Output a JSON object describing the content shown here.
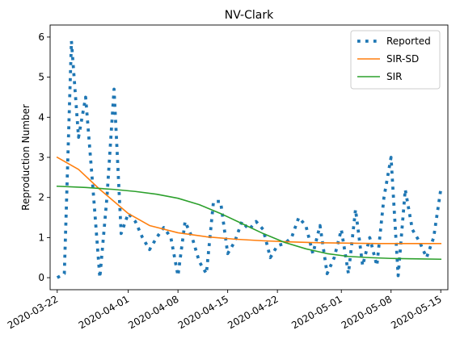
{
  "chart_data": {
    "type": "line",
    "title": "NV-Clark",
    "xlabel": "",
    "ylabel": "Reproduction Number",
    "x_type": "date",
    "xlim": [
      "2020-03-21",
      "2020-05-16"
    ],
    "ylim": [
      -0.3,
      6.3
    ],
    "x_ticks": [
      "2020-03-22",
      "2020-04-01",
      "2020-04-08",
      "2020-04-15",
      "2020-04-22",
      "2020-05-01",
      "2020-05-08",
      "2020-05-15"
    ],
    "y_ticks": [
      0,
      1,
      2,
      3,
      4,
      5,
      6
    ],
    "grid": false,
    "legend": {
      "position": "upper-right",
      "entries": [
        "Reported",
        "SIR-SD",
        "SIR"
      ]
    },
    "series": [
      {
        "name": "Reported",
        "style": "dotted",
        "color": "#1f77b4",
        "x": [
          "2020-03-22",
          "2020-03-23",
          "2020-03-24",
          "2020-03-25",
          "2020-03-26",
          "2020-03-27",
          "2020-03-28",
          "2020-03-29",
          "2020-03-30",
          "2020-03-31",
          "2020-04-01",
          "2020-04-02",
          "2020-04-03",
          "2020-04-04",
          "2020-04-05",
          "2020-04-06",
          "2020-04-07",
          "2020-04-08",
          "2020-04-09",
          "2020-04-10",
          "2020-04-11",
          "2020-04-12",
          "2020-04-13",
          "2020-04-14",
          "2020-04-15",
          "2020-04-16",
          "2020-04-17",
          "2020-04-18",
          "2020-04-19",
          "2020-04-20",
          "2020-04-21",
          "2020-04-22",
          "2020-04-23",
          "2020-04-24",
          "2020-04-25",
          "2020-04-26",
          "2020-04-27",
          "2020-04-28",
          "2020-04-29",
          "2020-04-30",
          "2020-05-01",
          "2020-05-02",
          "2020-05-03",
          "2020-05-04",
          "2020-05-05",
          "2020-05-06",
          "2020-05-07",
          "2020-05-08",
          "2020-05-09",
          "2020-05-10",
          "2020-05-11",
          "2020-05-12",
          "2020-05-13",
          "2020-05-14",
          "2020-05-15"
        ],
        "values": [
          0.0,
          0.1,
          5.9,
          3.5,
          4.5,
          2.3,
          0.0,
          2.0,
          4.7,
          1.1,
          1.6,
          1.4,
          1.0,
          0.7,
          1.0,
          1.25,
          1.0,
          0.05,
          1.4,
          1.0,
          0.4,
          0.1,
          1.9,
          1.9,
          0.6,
          0.9,
          1.4,
          1.2,
          1.4,
          1.2,
          0.5,
          0.8,
          0.85,
          1.0,
          1.5,
          1.3,
          0.6,
          1.3,
          0.1,
          0.5,
          1.2,
          0.1,
          1.7,
          0.3,
          1.0,
          0.3,
          2.0,
          3.0,
          0.05,
          2.2,
          1.2,
          0.9,
          0.5,
          1.0,
          2.2
        ]
      },
      {
        "name": "SIR-SD",
        "style": "solid",
        "color": "#ff7f0e",
        "x": [
          "2020-03-22",
          "2020-03-25",
          "2020-03-28",
          "2020-04-01",
          "2020-04-04",
          "2020-04-08",
          "2020-04-12",
          "2020-04-16",
          "2020-04-20",
          "2020-04-24",
          "2020-04-28",
          "2020-05-02",
          "2020-05-06",
          "2020-05-10",
          "2020-05-15"
        ],
        "values": [
          3.0,
          2.7,
          2.2,
          1.6,
          1.3,
          1.12,
          1.02,
          0.96,
          0.92,
          0.89,
          0.87,
          0.86,
          0.85,
          0.85,
          0.85
        ]
      },
      {
        "name": "SIR",
        "style": "solid",
        "color": "#2ca02c",
        "x": [
          "2020-03-22",
          "2020-03-26",
          "2020-03-30",
          "2020-04-02",
          "2020-04-05",
          "2020-04-08",
          "2020-04-11",
          "2020-04-14",
          "2020-04-17",
          "2020-04-20",
          "2020-04-23",
          "2020-04-26",
          "2020-04-29",
          "2020-05-02",
          "2020-05-05",
          "2020-05-08",
          "2020-05-11",
          "2020-05-15"
        ],
        "values": [
          2.28,
          2.25,
          2.2,
          2.15,
          2.08,
          1.98,
          1.82,
          1.6,
          1.35,
          1.1,
          0.88,
          0.72,
          0.6,
          0.53,
          0.5,
          0.48,
          0.47,
          0.46
        ]
      }
    ]
  }
}
